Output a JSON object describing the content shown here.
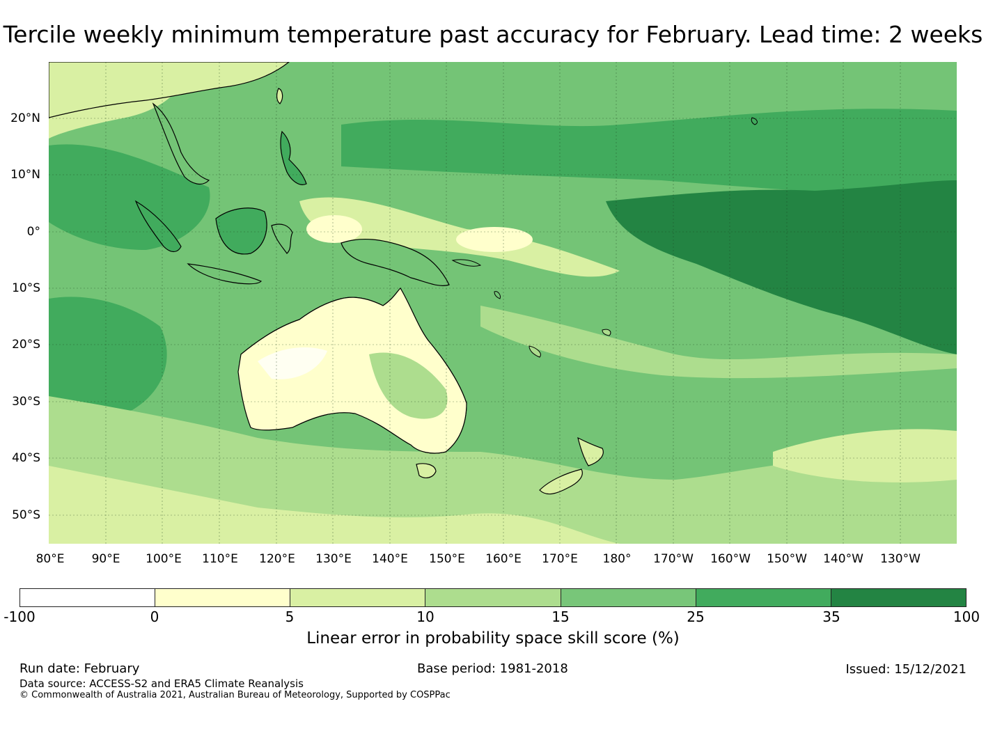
{
  "title": "Tercile weekly minimum temperature past accuracy for February. Lead time: 2 weeks",
  "map": {
    "lat_labels": [
      "20°N",
      "10°N",
      "0°",
      "10°S",
      "20°S",
      "30°S",
      "40°S",
      "50°S"
    ],
    "lon_labels": [
      "80°E",
      "90°E",
      "100°E",
      "110°E",
      "120°E",
      "130°E",
      "140°E",
      "150°E",
      "160°E",
      "170°E",
      "180°",
      "170°W",
      "160°W",
      "150°W",
      "140°W",
      "130°W"
    ]
  },
  "colorbar": {
    "ticks": [
      "-100",
      "0",
      "5",
      "10",
      "15",
      "25",
      "35",
      "100"
    ],
    "colors": [
      "#ffffff",
      "#ffffcc",
      "#d9f0a3",
      "#addd8e",
      "#78c679",
      "#41ab5d",
      "#238443"
    ],
    "label": "Linear error in probability space skill score (%)"
  },
  "footer": {
    "run_date": "Run date: February",
    "data_source": "Data source: ACCESS-S2 and ERA5 Climate Reanalysis",
    "copyright": "© Commonwealth of Australia 2021, Australian Bureau of Meteorology, Supported by COSPPac",
    "base_period": "Base period: 1981-2018",
    "issued": "Issued: 15/12/2021"
  }
}
